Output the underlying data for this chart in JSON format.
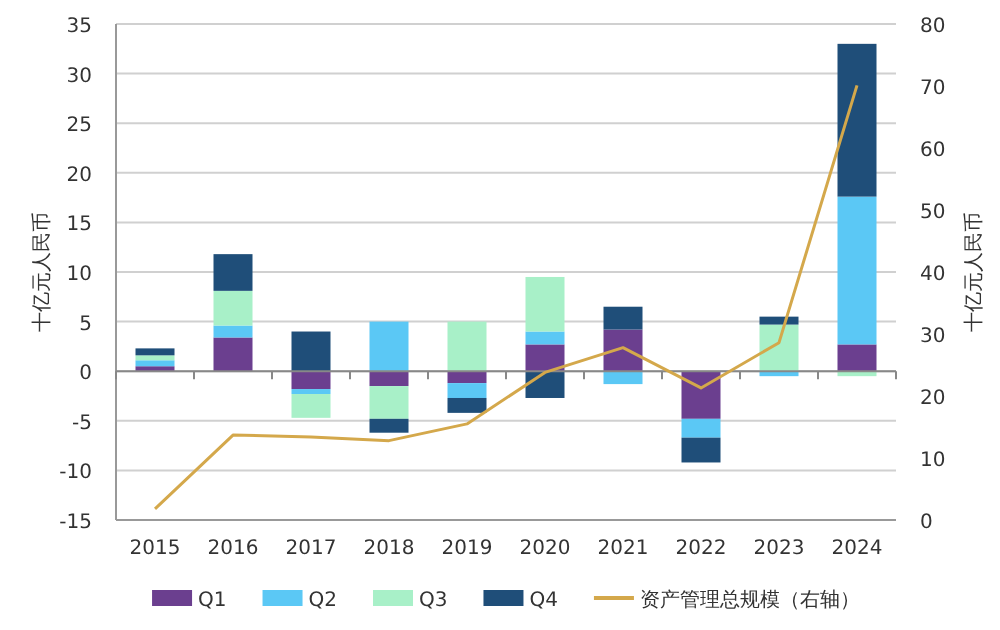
{
  "chart_data": {
    "type": "bar",
    "stacked": true,
    "ylabel": "十亿元人民币",
    "y2label": "十亿元人民币",
    "categories": [
      "2015",
      "2016",
      "2017",
      "2018",
      "2019",
      "2020",
      "2021",
      "2022",
      "2023",
      "2024"
    ],
    "ylim": [
      -15,
      35
    ],
    "yticks": [
      -15,
      -10,
      -5,
      0,
      5,
      10,
      15,
      20,
      25,
      30,
      35
    ],
    "y2lim": [
      0,
      80
    ],
    "y2ticks": [
      0,
      10,
      20,
      30,
      40,
      50,
      60,
      70,
      80
    ],
    "grid": "y",
    "legend": "bottom",
    "series": [
      {
        "name": "Q1",
        "color": "#6b3f8f",
        "values": [
          0.5,
          3.4,
          -1.8,
          -1.5,
          -1.2,
          2.7,
          4.2,
          -4.8,
          null,
          2.7
        ]
      },
      {
        "name": "Q2",
        "color": "#5bc8f5",
        "values": [
          0.6,
          1.2,
          -0.5,
          5.0,
          -1.5,
          1.3,
          -1.3,
          -1.9,
          -0.5,
          14.9
        ]
      },
      {
        "name": "Q3",
        "color": "#a8f0c8",
        "values": [
          0.5,
          3.5,
          -2.4,
          -3.3,
          5.0,
          5.5,
          null,
          null,
          4.7,
          -0.5
        ]
      },
      {
        "name": "Q4",
        "color": "#1f4e79",
        "values": [
          0.7,
          3.7,
          4.0,
          -1.4,
          -1.5,
          -2.7,
          2.3,
          -2.5,
          0.8,
          15.4
        ]
      },
      {
        "name": "资产管理总规模（右轴）",
        "color": "#d4a84b",
        "type": "line",
        "axis": "y2",
        "values": [
          1.8,
          13.7,
          13.4,
          12.8,
          15.5,
          23.8,
          27.8,
          21.3,
          28.6,
          70.1
        ]
      }
    ]
  }
}
